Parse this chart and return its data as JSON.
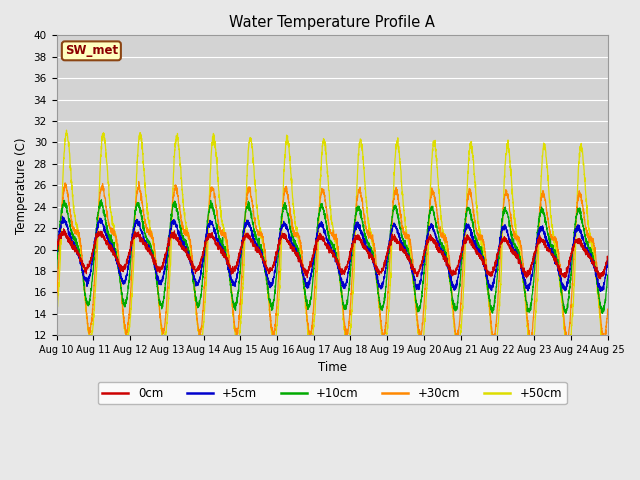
{
  "title": "Water Temperature Profile A",
  "xlabel": "Time",
  "ylabel": "Temperature (C)",
  "ylim": [
    12,
    40
  ],
  "yticks": [
    12,
    14,
    16,
    18,
    20,
    22,
    24,
    26,
    28,
    30,
    32,
    34,
    36,
    38,
    40
  ],
  "x_labels": [
    "Aug 10",
    "Aug 11",
    "Aug 12",
    "Aug 13",
    "Aug 14",
    "Aug 15",
    "Aug 16",
    "Aug 17",
    "Aug 18",
    "Aug 19",
    "Aug 20",
    "Aug 21",
    "Aug 22",
    "Aug 23",
    "Aug 24",
    "Aug 25"
  ],
  "colors": {
    "0cm": "#cc0000",
    "+5cm": "#0000cc",
    "+10cm": "#00aa00",
    "+30cm": "#ff8800",
    "+50cm": "#dddd00"
  },
  "legend_title": "SW_met",
  "bg_color": "#e8e8e8",
  "plot_bg_color": "#d3d3d3",
  "n_points": 3601,
  "days": 15
}
